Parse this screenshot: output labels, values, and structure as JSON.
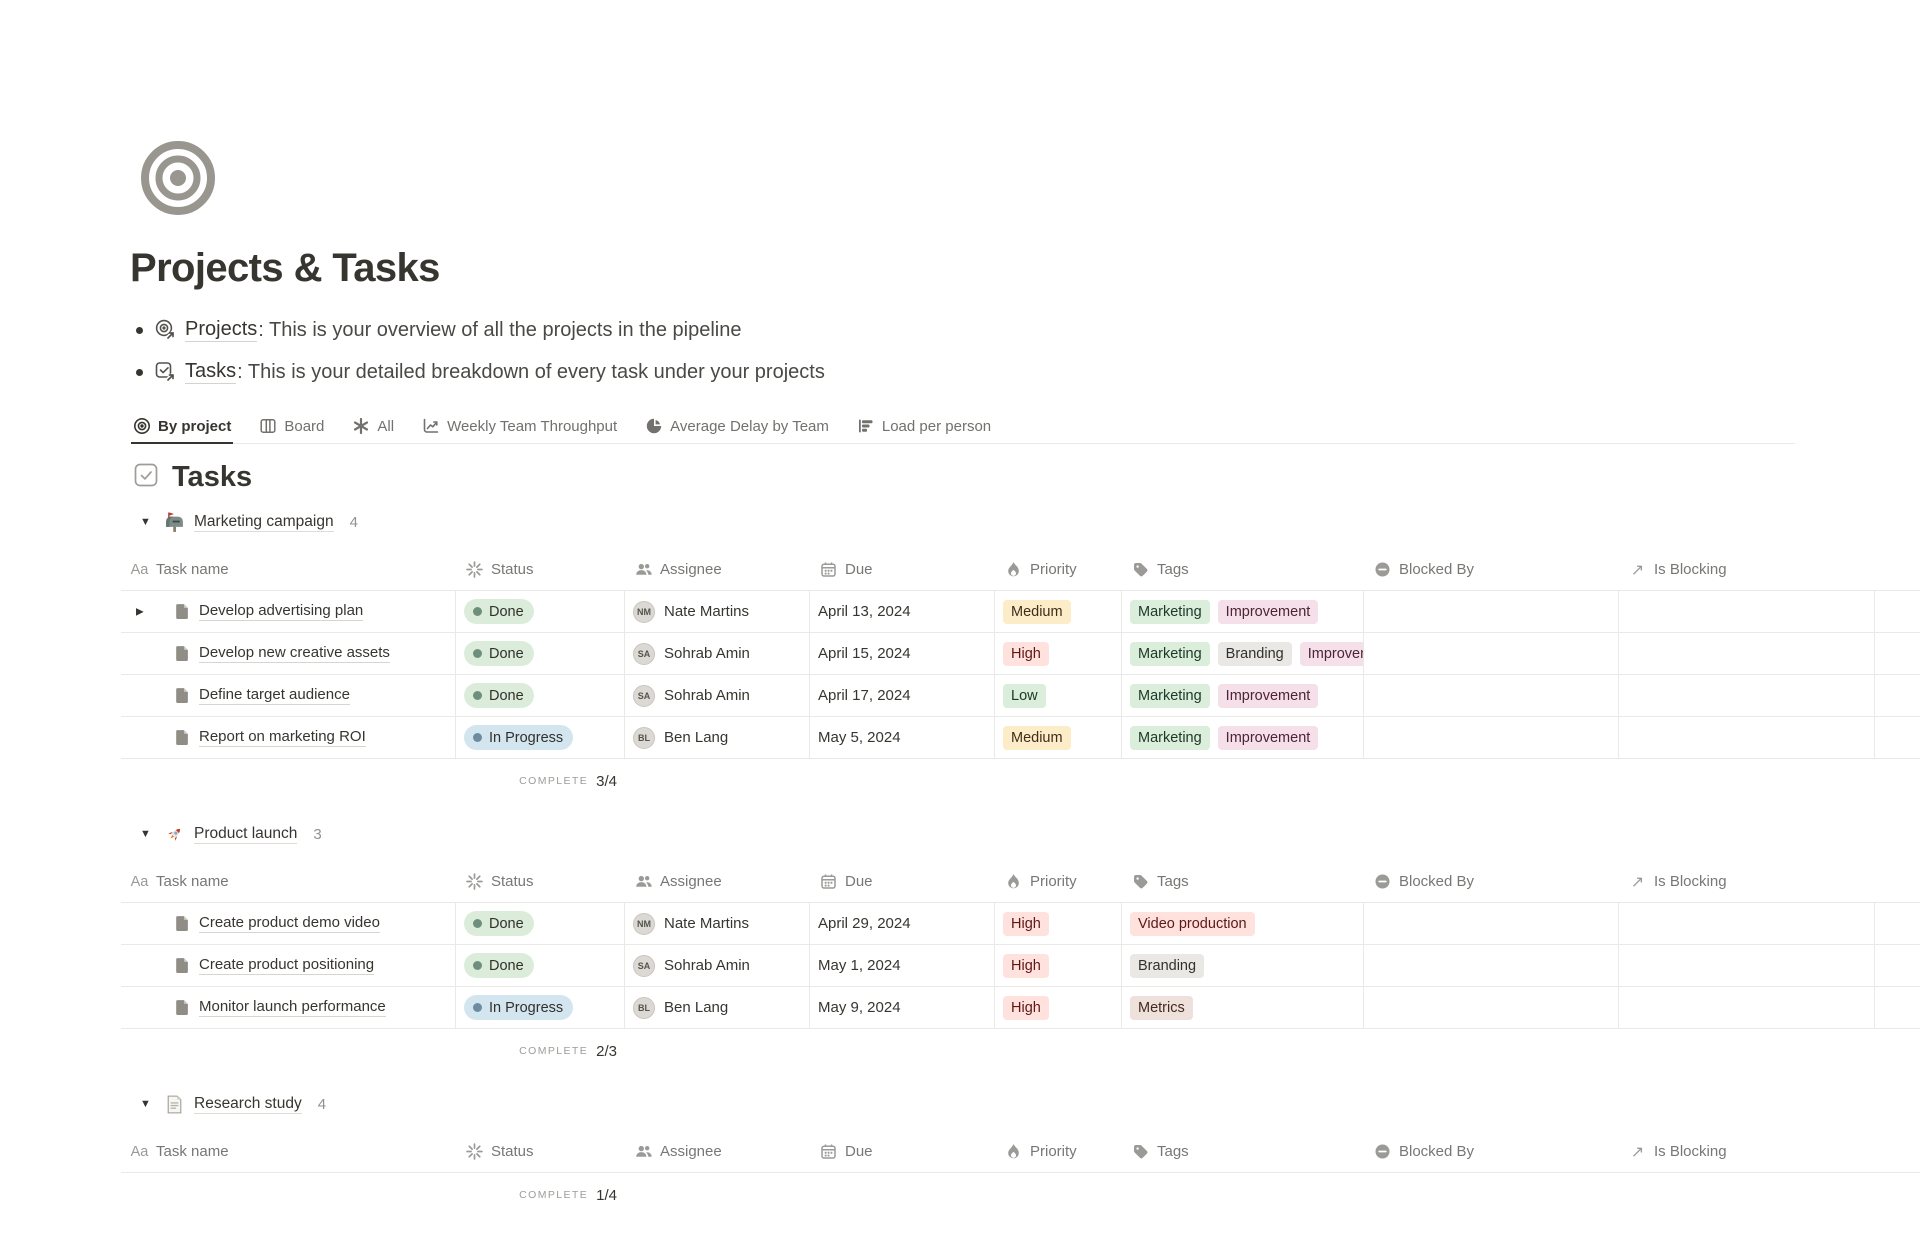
{
  "page": {
    "title": "Projects & Tasks",
    "icon": "bullseye-icon"
  },
  "intro": {
    "items": [
      {
        "icon": "projects-link-icon",
        "link": "Projects",
        "text": ": This is your overview of all the projects in the pipeline"
      },
      {
        "icon": "tasks-link-icon",
        "link": "Tasks",
        "text": ": This is your detailed breakdown of every task under your projects"
      }
    ]
  },
  "tabs": [
    {
      "label": "By project",
      "icon": "target-icon",
      "active": true
    },
    {
      "label": "Board",
      "icon": "board-icon",
      "active": false
    },
    {
      "label": "All",
      "icon": "asterisk-icon",
      "active": false
    },
    {
      "label": "Weekly Team Throughput",
      "icon": "line-chart-icon",
      "active": false
    },
    {
      "label": "Average Delay by Team",
      "icon": "pie-chart-icon",
      "active": false
    },
    {
      "label": "Load per person",
      "icon": "bar-chart-icon",
      "active": false
    }
  ],
  "section": {
    "title": "Tasks",
    "icon": "checkbox-icon"
  },
  "table": {
    "columns": [
      {
        "label": "Task name",
        "icon": "text-icon"
      },
      {
        "label": "Status",
        "icon": "status-burst-icon"
      },
      {
        "label": "Assignee",
        "icon": "people-icon"
      },
      {
        "label": "Due",
        "icon": "calendar-icon"
      },
      {
        "label": "Priority",
        "icon": "flame-icon"
      },
      {
        "label": "Tags",
        "icon": "tag-icon"
      },
      {
        "label": "Blocked By",
        "icon": "no-entry-icon"
      },
      {
        "label": "Is Blocking",
        "icon": "arrow-up-right-icon"
      }
    ]
  },
  "palette": {
    "status_done_bg": "#dcecdb",
    "status_done_dot": "#6f8f7d",
    "status_inprogress_bg": "#d3e5ef",
    "status_inprogress_dot": "#6e8ca0",
    "select_yellow": "#fdecc8",
    "select_red": "#ffe2dd",
    "select_green": "#dbeddb",
    "select_pink": "#f5e0e9",
    "select_gray": "#e9e8e5",
    "select_brown": "#eee0da",
    "text_primary": "#37352f",
    "text_secondary": "#787774",
    "border": "#e9e9e7"
  },
  "groups": [
    {
      "emoji": "mailbox-icon",
      "name": "Marketing campaign",
      "count": "4",
      "complete": {
        "label": "COMPLETE",
        "value": "3/4"
      },
      "rows": [
        {
          "expand": true,
          "task": "Develop advertising plan",
          "status": {
            "label": "Done",
            "color": "green"
          },
          "assignee": {
            "name": "Nate Martins",
            "initials": "NM"
          },
          "due": "April 13, 2024",
          "priority": {
            "label": "Medium",
            "color": "yellow"
          },
          "tags": [
            {
              "label": "Marketing",
              "color": "green"
            },
            {
              "label": "Improvement",
              "color": "pink"
            }
          ]
        },
        {
          "task": "Develop new creative assets",
          "status": {
            "label": "Done",
            "color": "green"
          },
          "assignee": {
            "name": "Sohrab Amin",
            "initials": "SA"
          },
          "due": "April 15, 2024",
          "priority": {
            "label": "High",
            "color": "red"
          },
          "tags": [
            {
              "label": "Marketing",
              "color": "green"
            },
            {
              "label": "Branding",
              "color": "gray"
            },
            {
              "label": "Improvement",
              "color": "pink"
            }
          ]
        },
        {
          "task": "Define target audience",
          "status": {
            "label": "Done",
            "color": "green"
          },
          "assignee": {
            "name": "Sohrab Amin",
            "initials": "SA"
          },
          "due": "April 17, 2024",
          "priority": {
            "label": "Low",
            "color": "green"
          },
          "tags": [
            {
              "label": "Marketing",
              "color": "green"
            },
            {
              "label": "Improvement",
              "color": "pink"
            }
          ]
        },
        {
          "task": "Report on marketing ROI",
          "status": {
            "label": "In Progress",
            "color": "blue"
          },
          "assignee": {
            "name": "Ben Lang",
            "initials": "BL"
          },
          "due": "May 5, 2024",
          "priority": {
            "label": "Medium",
            "color": "yellow"
          },
          "tags": [
            {
              "label": "Marketing",
              "color": "green"
            },
            {
              "label": "Improvement",
              "color": "pink"
            }
          ]
        }
      ]
    },
    {
      "emoji": "rocket-icon",
      "name": "Product launch",
      "count": "3",
      "complete": {
        "label": "COMPLETE",
        "value": "2/3"
      },
      "rows": [
        {
          "task": "Create product demo video",
          "status": {
            "label": "Done",
            "color": "green"
          },
          "assignee": {
            "name": "Nate Martins",
            "initials": "NM"
          },
          "due": "April 29, 2024",
          "priority": {
            "label": "High",
            "color": "red"
          },
          "tags": [
            {
              "label": "Video production",
              "color": "red"
            }
          ]
        },
        {
          "task": "Create product positioning",
          "status": {
            "label": "Done",
            "color": "green"
          },
          "assignee": {
            "name": "Sohrab Amin",
            "initials": "SA"
          },
          "due": "May 1, 2024",
          "priority": {
            "label": "High",
            "color": "red"
          },
          "tags": [
            {
              "label": "Branding",
              "color": "gray"
            }
          ]
        },
        {
          "task": "Monitor launch performance",
          "status": {
            "label": "In Progress",
            "color": "blue"
          },
          "assignee": {
            "name": "Ben Lang",
            "initials": "BL"
          },
          "due": "May 9, 2024",
          "priority": {
            "label": "High",
            "color": "red"
          },
          "tags": [
            {
              "label": "Metrics",
              "color": "brown"
            }
          ]
        }
      ]
    },
    {
      "emoji": "document-icon",
      "name": "Research study",
      "count": "4",
      "complete": {
        "label": "COMPLETE",
        "value": "1/4"
      },
      "rows": []
    }
  ]
}
